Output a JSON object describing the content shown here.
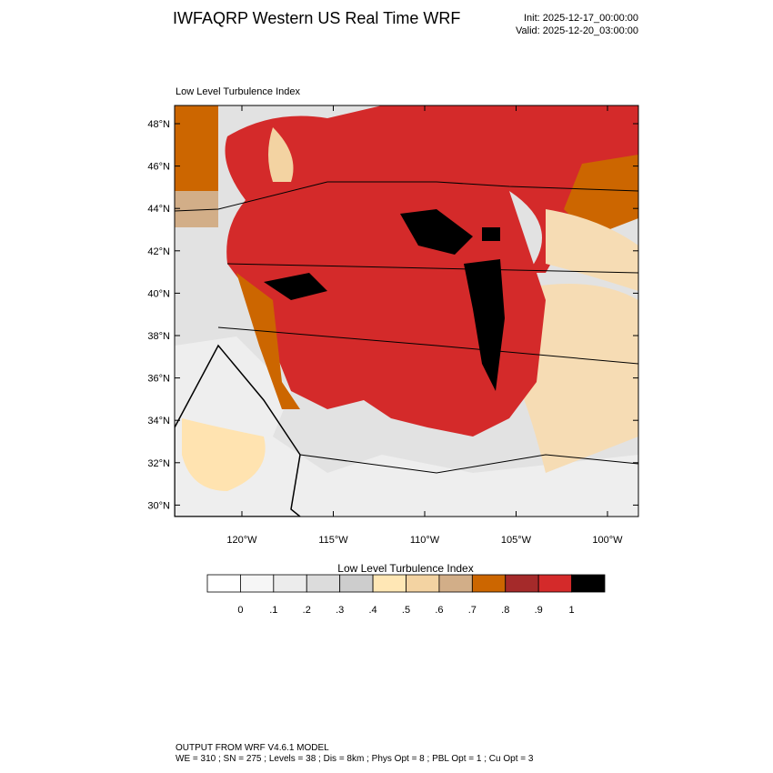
{
  "header": {
    "title": "IWFAQRP Western US Real Time WRF",
    "init": "Init: 2025-12-17_00:00:00",
    "valid": "Valid: 2025-12-20_03:00:00"
  },
  "map": {
    "title": "Low Level Turbulence Index",
    "lat_labels": [
      "48°N",
      "46°N",
      "44°N",
      "42°N",
      "40°N",
      "38°N",
      "36°N",
      "34°N",
      "32°N",
      "30°N"
    ],
    "lon_labels": [
      "120°W",
      "115°W",
      "110°W",
      "105°W",
      "100°W"
    ]
  },
  "colorbar": {
    "title": "Low Level Turbulence Index",
    "labels": [
      "0",
      ".1",
      ".2",
      ".3",
      ".4",
      ".5",
      ".6",
      ".7",
      ".8",
      ".9",
      "1"
    ],
    "colors": [
      "#ffffff",
      "#f6f6f6",
      "#ececec",
      "#dcdcdc",
      "#cdcdcd",
      "#ffe7b5",
      "#f3d3a2",
      "#d2ae88",
      "#cc6600",
      "#a52a2a",
      "#d42a2a",
      "#000000"
    ]
  },
  "footer": {
    "line1": "OUTPUT FROM WRF V4.6.1 MODEL",
    "line2": "WE = 310 ; SN = 275 ; Levels = 38 ; Dis = 8km ; Phys Opt = 8 ; PBL Opt = 1 ; Cu Opt = 3"
  }
}
